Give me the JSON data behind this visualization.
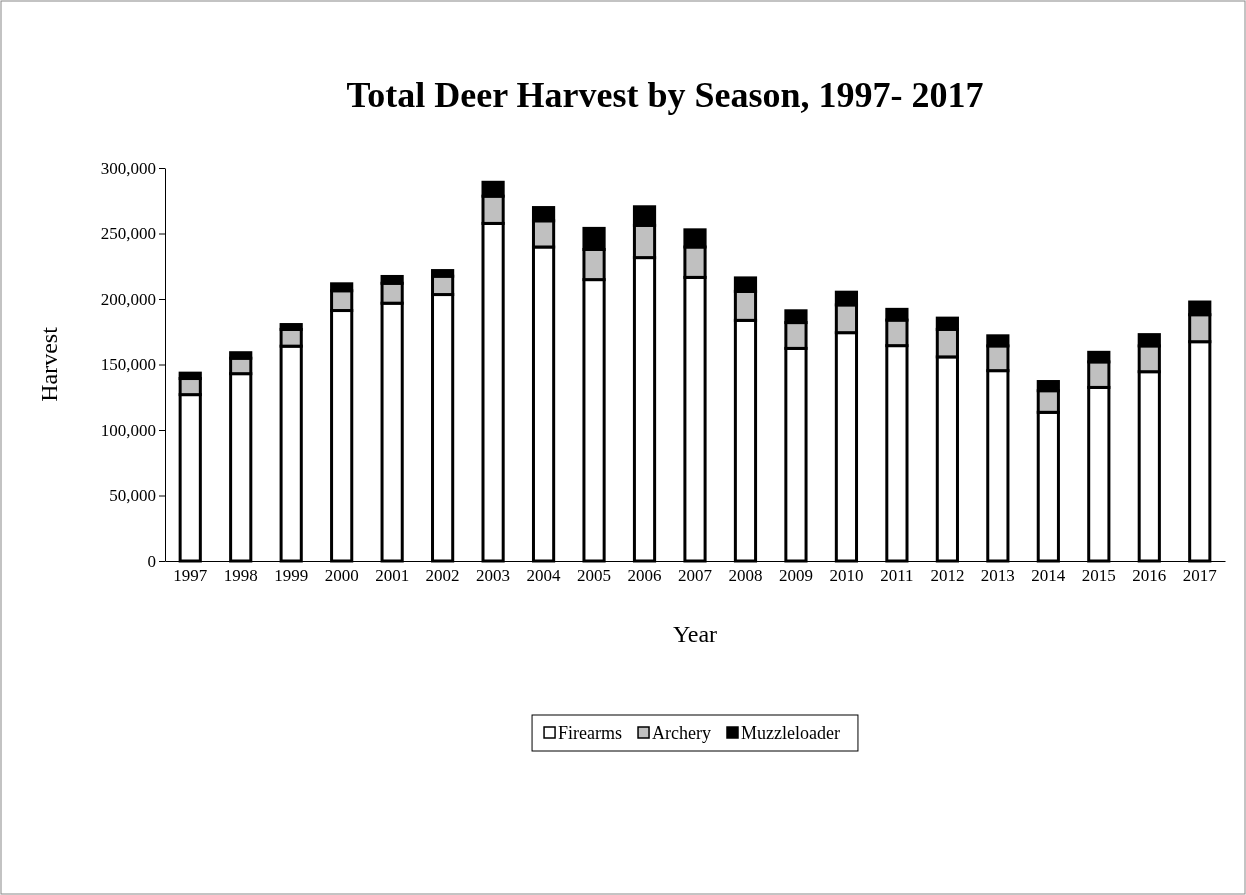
{
  "chart_data": {
    "type": "bar",
    "title": "Total Deer Harvest by Season, 1997- 2017",
    "xlabel": "Year",
    "ylabel": "Harvest",
    "categories": [
      "1997",
      "1998",
      "1999",
      "2000",
      "2001",
      "2002",
      "2003",
      "2004",
      "2005",
      "2006",
      "2007",
      "2008",
      "2009",
      "2010",
      "2011",
      "2012",
      "2013",
      "2014",
      "2015",
      "2016",
      "2017"
    ],
    "stacked": true,
    "legend": "bottom",
    "grid": false,
    "ylim": [
      0,
      300000
    ],
    "yticks": [
      {
        "value": 0,
        "label": "0"
      },
      {
        "value": 50000,
        "label": "50,000"
      },
      {
        "value": 100000,
        "label": "100,000"
      },
      {
        "value": 150000,
        "label": "150,000"
      },
      {
        "value": 200000,
        "label": "200,000"
      },
      {
        "value": 250000,
        "label": "250,000"
      },
      {
        "value": 300000,
        "label": "300,000"
      }
    ],
    "series": [
      {
        "name": "Firearms",
        "color": "#ffffff",
        "values": [
          127000,
          143000,
          164000,
          191200,
          196800,
          203400,
          257700,
          239700,
          214800,
          231600,
          216500,
          183700,
          162300,
          174300,
          164400,
          155800,
          145300,
          113500,
          132500,
          144500,
          167400
        ]
      },
      {
        "name": "Archery",
        "color": "#c0c0c0",
        "values": [
          12300,
          11800,
          12800,
          15100,
          15200,
          14000,
          20800,
          20000,
          23000,
          24600,
          23200,
          22100,
          19700,
          21200,
          19500,
          21000,
          18900,
          16500,
          19500,
          19700,
          20600
        ]
      },
      {
        "name": "Muzzleloader",
        "color": "#000000",
        "values": [
          4100,
          4200,
          3700,
          5300,
          5200,
          4300,
          10600,
          10100,
          16100,
          14200,
          13100,
          10300,
          9000,
          9700,
          8200,
          8600,
          7700,
          7000,
          7300,
          8600,
          9700
        ]
      }
    ]
  }
}
